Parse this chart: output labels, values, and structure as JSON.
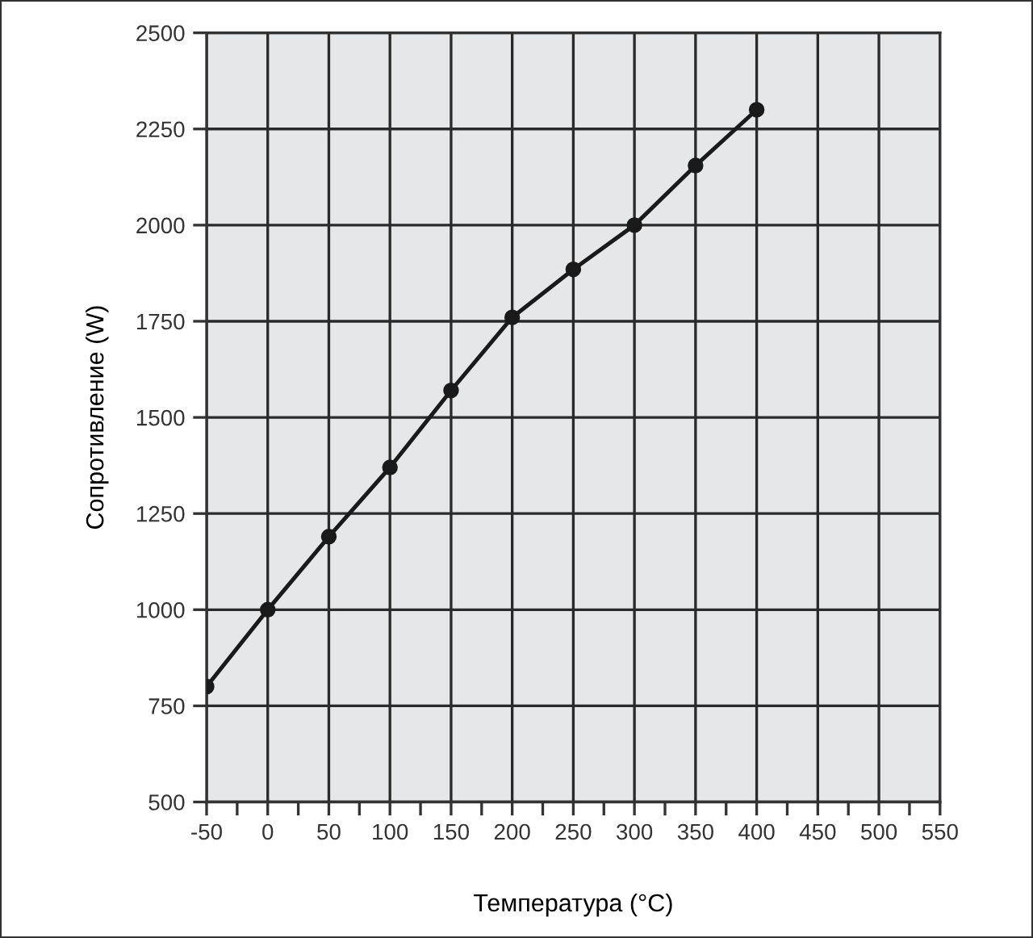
{
  "chart_data": {
    "type": "line",
    "xlabel": "Температура (°C)",
    "ylabel": "Сопротивление (W)",
    "x": [
      -50,
      0,
      50,
      100,
      150,
      200,
      250,
      300,
      350,
      400
    ],
    "series": [
      {
        "color": "#1a1a1a",
        "values": [
          800,
          1000,
          1190,
          1370,
          1570,
          1760,
          1885,
          2000,
          2155,
          2300
        ]
      }
    ],
    "xlim": [
      -50,
      550
    ],
    "xticks": [
      {
        "value": -50,
        "label": "-50"
      },
      {
        "value": -25,
        "label": null
      },
      0,
      {
        "value": 25,
        "label": null
      },
      50,
      {
        "value": 75,
        "label": null
      },
      100,
      {
        "value": 125,
        "label": null
      },
      150,
      {
        "value": 175,
        "label": null
      },
      200,
      {
        "value": 225,
        "label": null
      },
      250,
      {
        "value": 275,
        "label": null
      },
      300,
      {
        "value": 325,
        "label": null
      },
      350,
      {
        "value": 375,
        "label": null
      },
      400,
      {
        "value": 425,
        "label": null
      },
      450,
      {
        "value": 475,
        "label": null
      },
      500,
      {
        "value": 525,
        "label": null
      },
      550
    ],
    "ylim": [
      500,
      2500
    ],
    "yticks": [
      500,
      750,
      1000,
      1250,
      1500,
      1750,
      2000,
      2250,
      2500
    ],
    "grid": true,
    "marker": "circle",
    "line_style": "solid",
    "legend": false
  }
}
